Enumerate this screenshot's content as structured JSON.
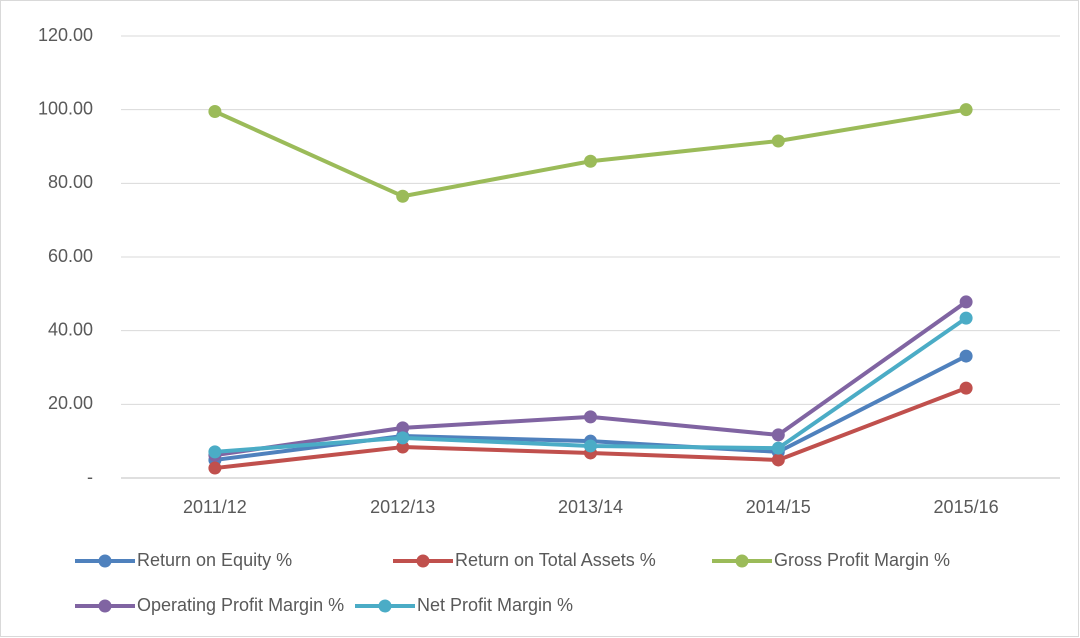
{
  "chart_data": {
    "type": "line",
    "categories": [
      "2011/12",
      "2012/13",
      "2013/14",
      "2014/15",
      "2015/16"
    ],
    "series": [
      {
        "name": "Return on Equity %",
        "color": "#4f81bd",
        "values": [
          4.9,
          11.4,
          10.0,
          7.1,
          33.1
        ]
      },
      {
        "name": "Return on Total Assets %",
        "color": "#c0504d",
        "values": [
          2.7,
          8.4,
          6.8,
          4.9,
          24.4
        ]
      },
      {
        "name": "Gross Profit Margin %",
        "color": "#9bbb59",
        "values": [
          99.5,
          76.5,
          86.0,
          91.5,
          100.0
        ]
      },
      {
        "name": "Operating Profit Margin %",
        "color": "#8064a2",
        "values": [
          6.2,
          13.6,
          16.6,
          11.7,
          47.8
        ]
      },
      {
        "name": "Net Profit Margin %",
        "color": "#4bacc6",
        "values": [
          7.1,
          10.9,
          8.7,
          8.1,
          43.4
        ]
      }
    ],
    "ylim": [
      0,
      120
    ],
    "yticks": [
      {
        "value": 0,
        "label": "-"
      },
      {
        "value": 20,
        "label": "20.00"
      },
      {
        "value": 40,
        "label": "40.00"
      },
      {
        "value": 60,
        "label": "60.00"
      },
      {
        "value": 80,
        "label": "80.00"
      },
      {
        "value": 100,
        "label": "100.00"
      },
      {
        "value": 120,
        "label": "120.00"
      }
    ],
    "grid": true,
    "legend": "bottom"
  }
}
